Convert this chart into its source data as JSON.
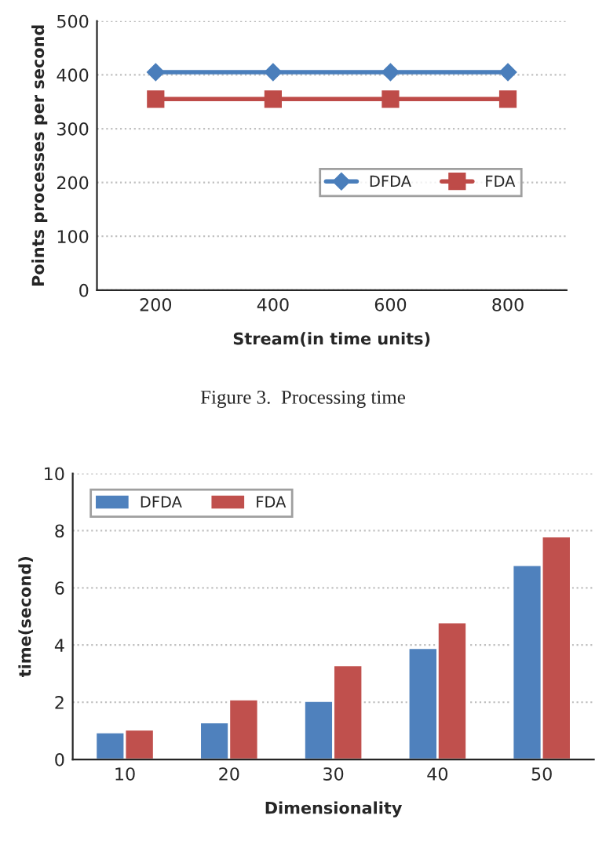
{
  "chart_data": [
    {
      "type": "line",
      "xlabel": "Stream(in time units)",
      "ylabel": "Points processes per second",
      "categories": [
        "200",
        "400",
        "600",
        "800"
      ],
      "series": [
        {
          "name": "DFDA",
          "color": "#4a7ebb",
          "values": [
            405,
            405,
            405,
            405
          ],
          "marker": "diamond"
        },
        {
          "name": "FDA",
          "color": "#be4b48",
          "values": [
            355,
            355,
            355,
            355
          ],
          "marker": "square"
        }
      ],
      "ylim": [
        0,
        500
      ],
      "yticks": [
        0,
        100,
        200,
        300,
        400,
        500
      ],
      "grid": "y",
      "legend": "right",
      "line_style": "solid",
      "annotations": [
        "Figure 3.  Processing time"
      ]
    },
    {
      "type": "bar",
      "xlabel": "Dimensionality",
      "ylabel": "time(second)",
      "categories": [
        "10",
        "20",
        "30",
        "40",
        "50"
      ],
      "series": [
        {
          "name": "DFDA",
          "color": "#4f81bd",
          "values": [
            0.95,
            1.3,
            2.05,
            3.9,
            6.8
          ]
        },
        {
          "name": "FDA",
          "color": "#c0504d",
          "values": [
            1.05,
            2.1,
            3.3,
            4.8,
            7.8
          ]
        }
      ],
      "ylim": [
        0,
        10
      ],
      "yticks": [
        0,
        2,
        4,
        6,
        8,
        10
      ],
      "grid": "y",
      "legend": "top left"
    }
  ]
}
